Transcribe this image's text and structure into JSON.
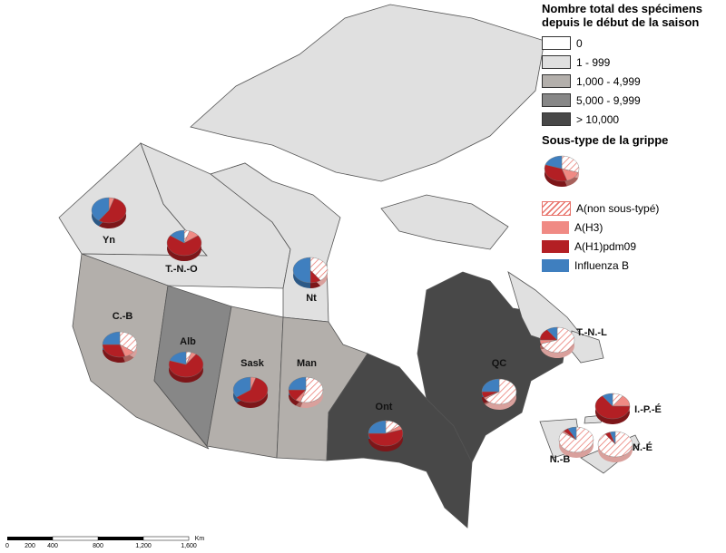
{
  "legend": {
    "title": "Nombre total des spécimens depuis le début de la saison",
    "classes": [
      {
        "label": "0",
        "color": "#ffffff"
      },
      {
        "label": "1 - 999",
        "color": "#e0e0e0"
      },
      {
        "label": "1,000 - 4,999",
        "color": "#b3afab"
      },
      {
        "label": "5,000 - 9,999",
        "color": "#878787"
      },
      {
        "label": "> 10,000",
        "color": "#484848"
      }
    ],
    "subtype_title": "Sous-type de la grippe",
    "sample_pie": [
      30,
      15,
      35,
      20
    ],
    "subtypes": [
      {
        "label": "A(non sous-typé)",
        "color": "#e8746c",
        "hatched": true
      },
      {
        "label": "A(H3)",
        "color": "#f08a84",
        "hatched": false
      },
      {
        "label": "A(H1)pdm09",
        "color": "#b31f24",
        "hatched": false
      },
      {
        "label": "Influenza B",
        "color": "#3f7fbf",
        "hatched": false
      }
    ]
  },
  "regions": [
    {
      "label": "Yn",
      "fill": "#e0e0e0",
      "pie": [
        0,
        5,
        55,
        40
      ]
    },
    {
      "label": "T.-N.-O",
      "fill": "#e0e0e0",
      "pie": [
        5,
        10,
        70,
        15
      ]
    },
    {
      "label": "Nt",
      "fill": "#e0e0e0",
      "pie": [
        40,
        0,
        10,
        50
      ]
    },
    {
      "label": "C.-B",
      "fill": "#b3afab",
      "pie": [
        35,
        10,
        30,
        25
      ]
    },
    {
      "label": "Alb",
      "fill": "#878787",
      "pie": [
        5,
        5,
        70,
        20
      ]
    },
    {
      "label": "Sask",
      "fill": "#b3afab",
      "pie": [
        0,
        5,
        60,
        35
      ]
    },
    {
      "label": "Man",
      "fill": "#b3afab",
      "pie": [
        55,
        5,
        15,
        25
      ]
    },
    {
      "label": "Ont",
      "fill": "#484848",
      "pie": [
        15,
        5,
        55,
        25
      ]
    },
    {
      "label": "QC",
      "fill": "#484848",
      "pie": [
        65,
        2,
        8,
        25
      ]
    },
    {
      "label": "T.-N.-L",
      "fill": "#e0e0e0",
      "pie": [
        70,
        5,
        15,
        10
      ]
    },
    {
      "label": "I.-P.-É",
      "fill": "#e0e0e0",
      "pie": [
        10,
        15,
        65,
        10
      ]
    },
    {
      "label": "N.-B",
      "fill": "#e0e0e0",
      "pie": [
        85,
        2,
        5,
        8
      ]
    },
    {
      "label": "N.-É",
      "fill": "#e0e0e0",
      "pie": [
        90,
        0,
        5,
        5
      ]
    }
  ],
  "scale": {
    "labels": [
      "0",
      "200",
      "400",
      "800",
      "1,200",
      "1,600"
    ],
    "unit": "Km"
  }
}
